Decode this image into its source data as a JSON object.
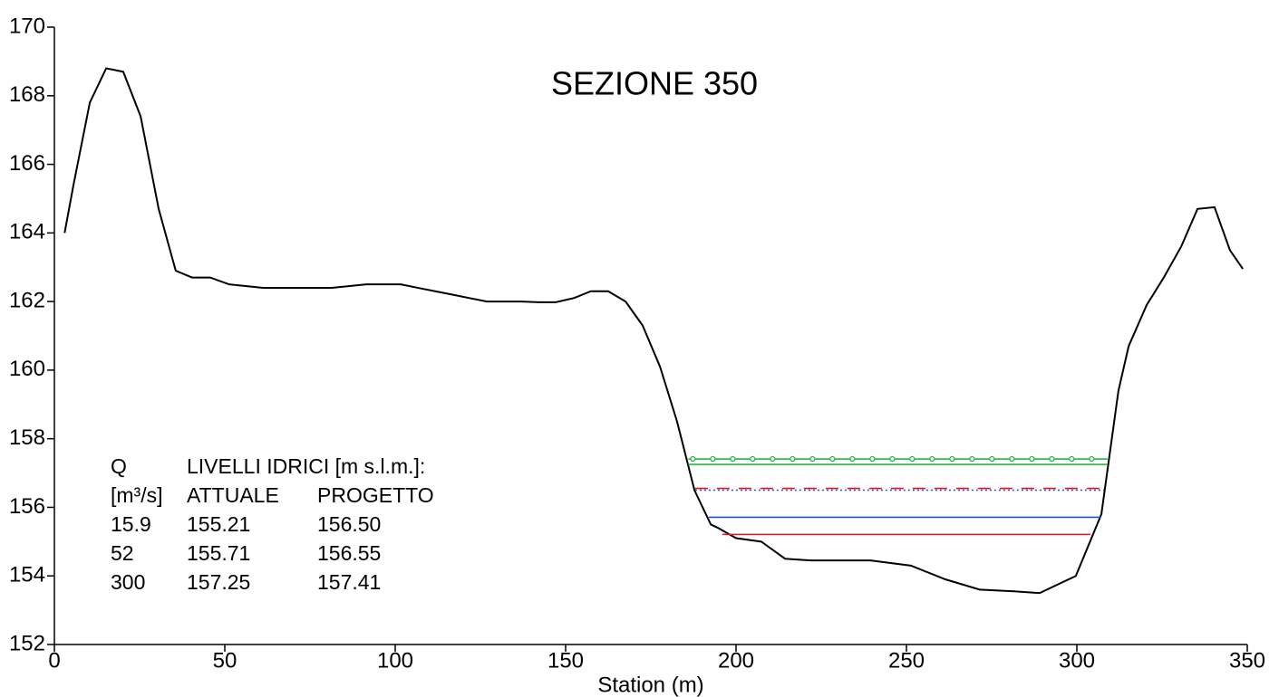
{
  "chart_data": {
    "type": "line",
    "title": "SEZIONE 350",
    "x_label": "Station (m)",
    "xlim": [
      0,
      350
    ],
    "xticks": [
      0,
      50,
      100,
      150,
      200,
      250,
      300,
      350
    ],
    "ylim": [
      152,
      170
    ],
    "yticks": [
      152,
      154,
      156,
      158,
      160,
      162,
      164,
      166,
      168,
      170
    ],
    "ground": {
      "color": "#000000",
      "x": [
        3,
        5.6,
        10.4,
        15.2,
        20.2,
        25.3,
        30.6,
        35.6,
        40.4,
        45.7,
        51.3,
        61.2,
        66.2,
        71.3,
        81.4,
        91.5,
        101.6,
        106.6,
        111.7,
        116.8,
        121.8,
        126.9,
        137,
        142,
        147.1,
        152.4,
        157.4,
        162.5,
        167.6,
        172.6,
        177.7,
        182.7,
        187.8,
        192.6,
        194.7,
        200,
        207.4,
        214.4,
        222.1,
        231.6,
        239.4,
        251.3,
        261.4,
        271.5,
        281.6,
        289.1,
        299.7,
        307.2,
        312.2,
        315.2,
        320.5,
        325.5,
        330.6,
        335.4,
        340.4,
        344.9,
        348.7
      ],
      "values": [
        164,
        165.4,
        167.8,
        168.8,
        168.7,
        167.4,
        164.7,
        162.9,
        162.7,
        162.7,
        162.5,
        162.4,
        162.4,
        162.4,
        162.4,
        162.5,
        162.5,
        162.4,
        162.3,
        162.2,
        162.1,
        162,
        162,
        161.98,
        161.98,
        162.1,
        162.3,
        162.3,
        162,
        161.3,
        160.1,
        158.5,
        156.5,
        155.5,
        155.4,
        155.1,
        155,
        154.5,
        154.45,
        154.45,
        154.45,
        154.3,
        153.9,
        153.6,
        153.55,
        153.5,
        154,
        155.8,
        159.4,
        160.7,
        161.9,
        162.7,
        163.6,
        164.7,
        164.75,
        163.5,
        162.95
      ]
    },
    "series": [
      {
        "color": "#2eb34a",
        "style": "circles",
        "x": [
          186,
          309
        ],
        "values": [
          157.41,
          157.41
        ]
      },
      {
        "color": "#2eb34a",
        "style": "solid",
        "x": [
          186,
          309
        ],
        "values": [
          157.25,
          157.25
        ]
      },
      {
        "color": "#e8141c",
        "style": "dashed",
        "x": [
          188,
          308
        ],
        "values": [
          156.55,
          156.55
        ]
      },
      {
        "color": "#1f4fd6",
        "style": "dotted",
        "x": [
          188,
          308
        ],
        "values": [
          156.5,
          156.5
        ]
      },
      {
        "color": "#1f4fd6",
        "style": "solid",
        "x": [
          192,
          307
        ],
        "values": [
          155.71,
          155.71
        ]
      },
      {
        "color": "#e8141c",
        "style": "solid",
        "x": [
          196,
          304
        ],
        "values": [
          155.21,
          155.21
        ]
      }
    ],
    "table": {
      "header": [
        [
          "Q",
          "LIVELLI IDRICI [m s.l.m.]:",
          ""
        ],
        [
          "[m³/s]",
          "ATTUALE",
          "PROGETTO"
        ]
      ],
      "rows": [
        [
          "15.9",
          "155.21",
          "156.50"
        ],
        [
          "52",
          "155.71",
          "156.55"
        ],
        [
          "300",
          "157.25",
          "157.41"
        ]
      ]
    }
  }
}
